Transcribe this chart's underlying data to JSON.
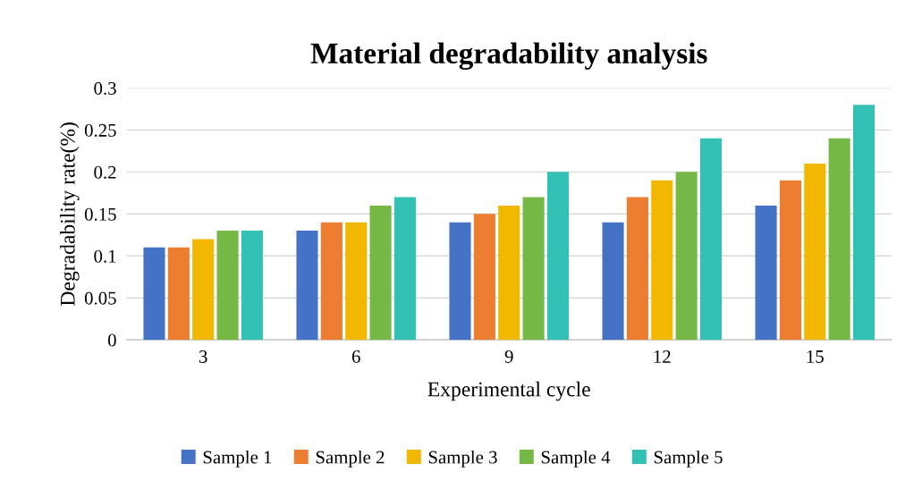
{
  "chart_data": {
    "type": "bar",
    "title": "Material degradability analysis",
    "xlabel": "Experimental cycle",
    "ylabel": "Degradability rate(%)",
    "categories": [
      "3",
      "6",
      "9",
      "12",
      "15"
    ],
    "series": [
      {
        "name": "Sample 1",
        "color": "#4472c4",
        "values": [
          0.11,
          0.13,
          0.14,
          0.14,
          0.16
        ]
      },
      {
        "name": "Sample 2",
        "color": "#ed7d31",
        "values": [
          0.11,
          0.14,
          0.15,
          0.17,
          0.19
        ]
      },
      {
        "name": "Sample 3",
        "color": "#f2b800",
        "values": [
          0.12,
          0.14,
          0.16,
          0.19,
          0.21
        ]
      },
      {
        "name": "Sample 4",
        "color": "#76b845",
        "values": [
          0.13,
          0.16,
          0.17,
          0.2,
          0.24
        ]
      },
      {
        "name": "Sample 5",
        "color": "#33c1b5",
        "values": [
          0.13,
          0.17,
          0.2,
          0.24,
          0.28
        ]
      }
    ],
    "ylim": [
      0,
      0.3
    ],
    "yticks": [
      0,
      0.05,
      0.1,
      0.15,
      0.2,
      0.25,
      0.3
    ],
    "grid": "y",
    "legend": "bottom"
  }
}
